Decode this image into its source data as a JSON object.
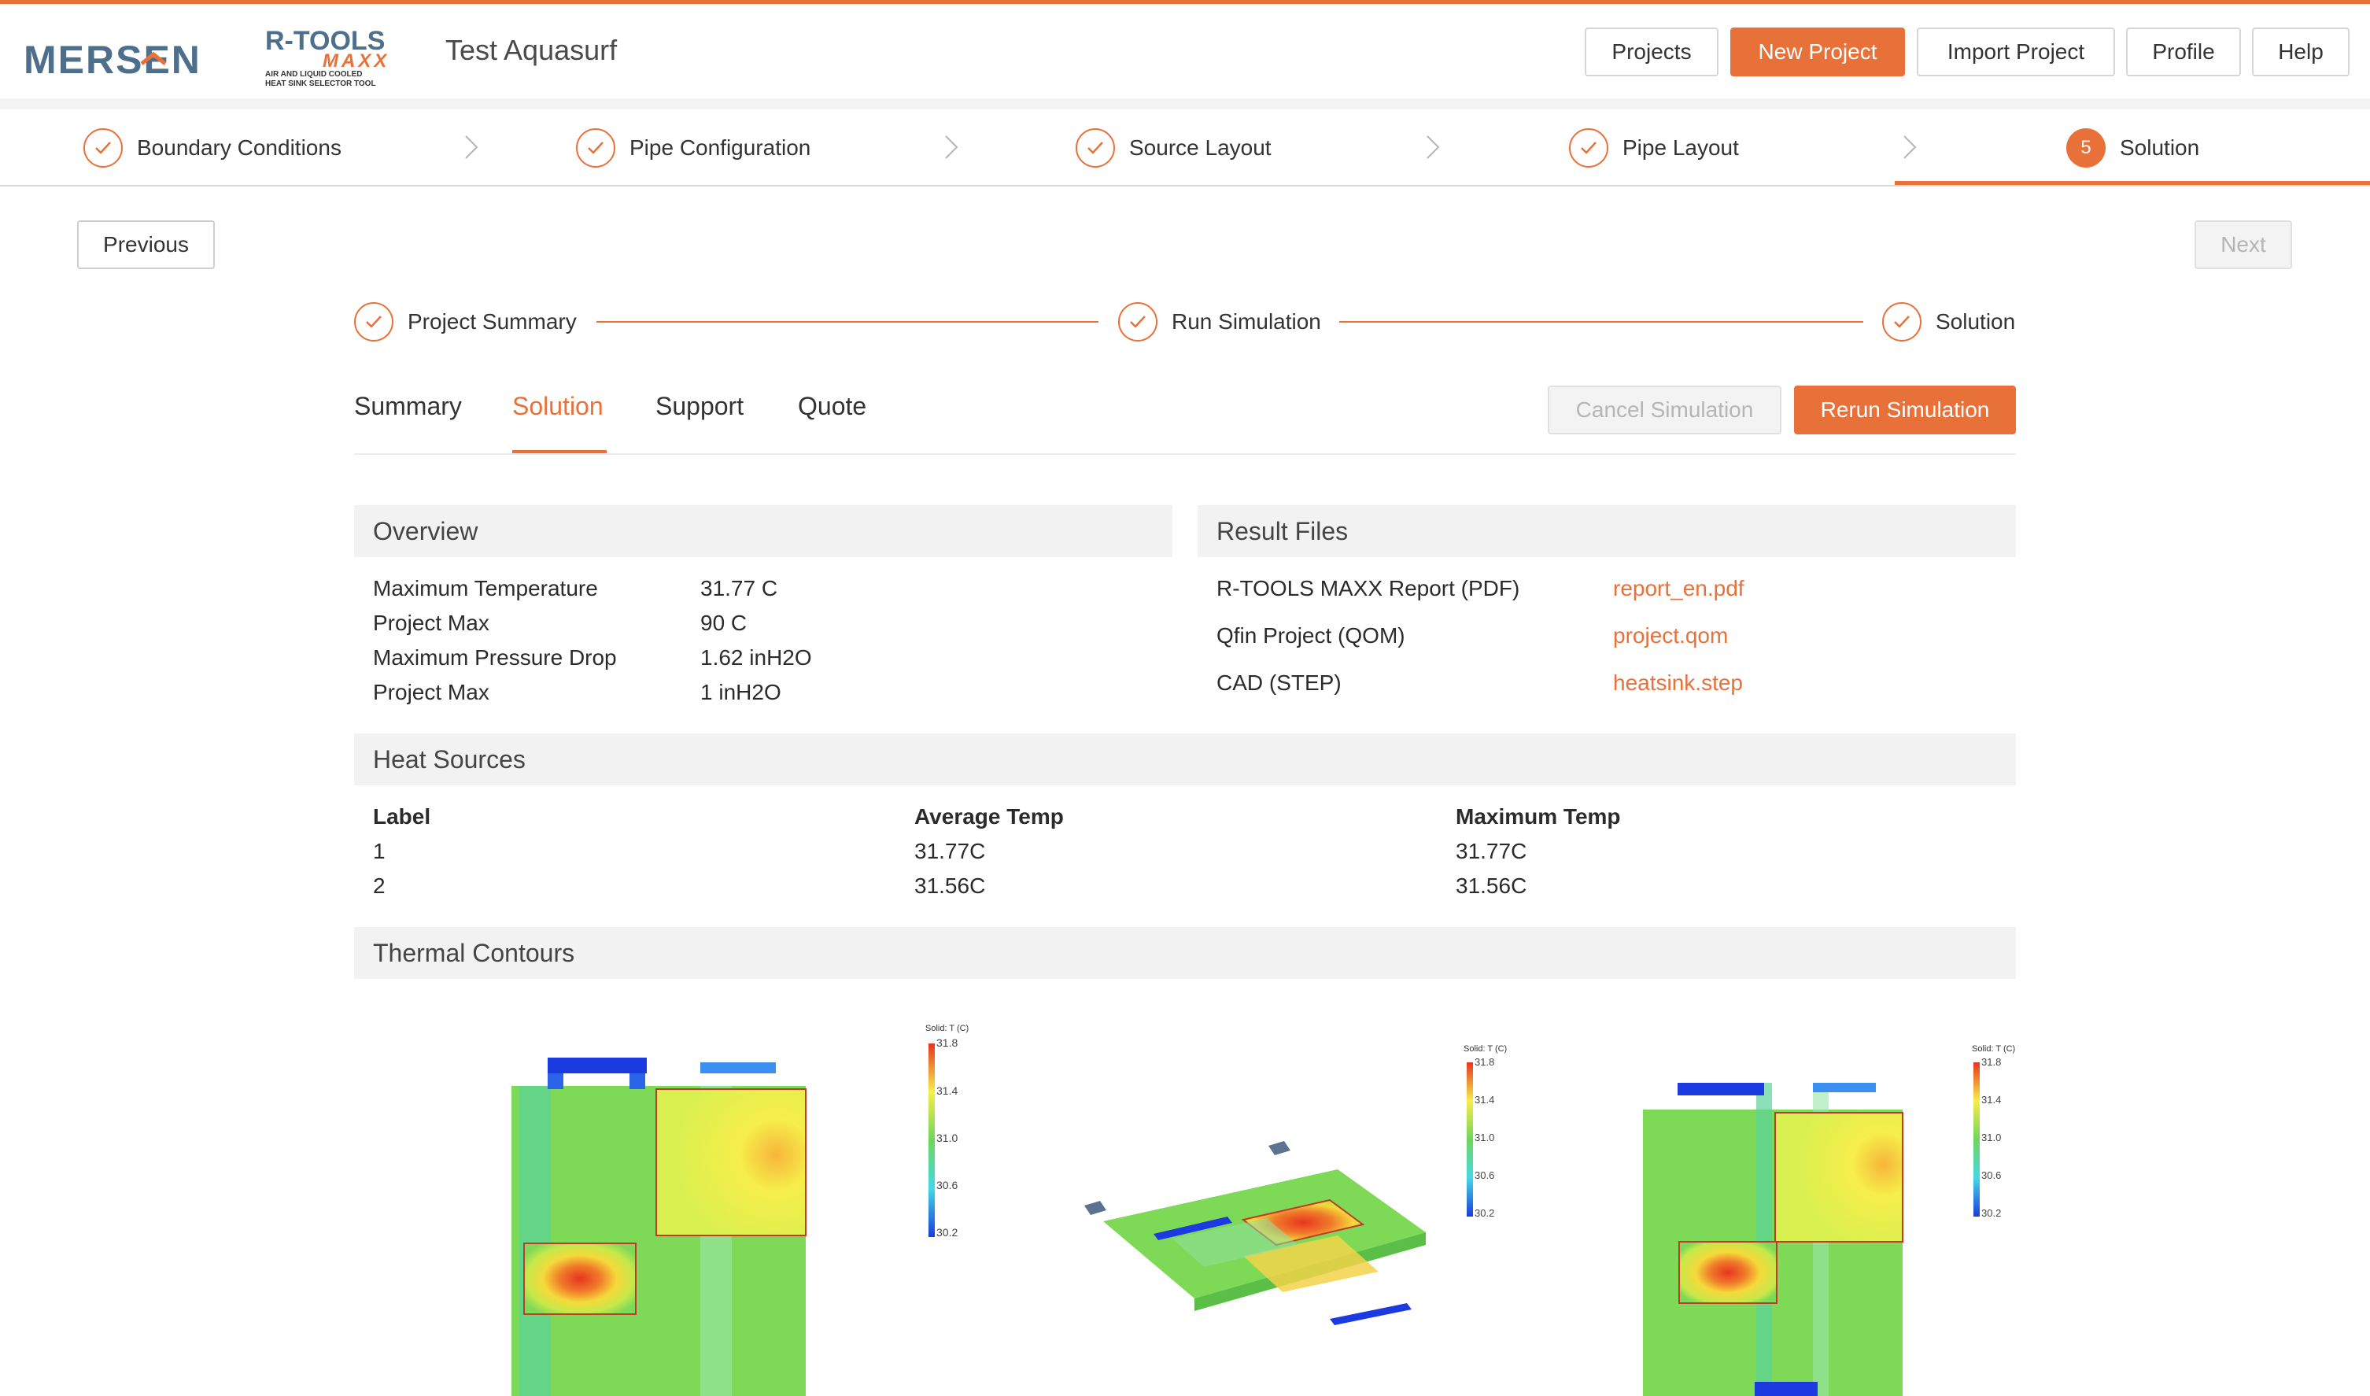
{
  "brand": {
    "company": "MERSEN",
    "product": "R-TOOLS",
    "product_sub": "MAXX",
    "tagline_1": "AIR AND LIQUID COOLED",
    "tagline_2": "HEAT SINK SELECTOR TOOL"
  },
  "header": {
    "project_name": "Test Aquasurf",
    "nav": [
      "Projects",
      "New Project",
      "Import Project",
      "Profile",
      "Help"
    ]
  },
  "wizard": {
    "steps": [
      "Boundary Conditions",
      "Pipe Configuration",
      "Source Layout",
      "Pipe Layout",
      "Solution"
    ],
    "active_number": "5"
  },
  "buttons": {
    "previous": "Previous",
    "next": "Next",
    "cancel_sim": "Cancel Simulation",
    "rerun_sim": "Rerun Simulation"
  },
  "progress": {
    "steps": [
      "Project Summary",
      "Run Simulation",
      "Solution"
    ]
  },
  "tabs": [
    "Summary",
    "Solution",
    "Support",
    "Quote"
  ],
  "overview": {
    "title": "Overview",
    "rows": [
      {
        "label": "Maximum Temperature",
        "value": "31.77 C"
      },
      {
        "label": "Project Max",
        "value": "90 C"
      },
      {
        "label": "Maximum Pressure Drop",
        "value": "1.62 inH2O"
      },
      {
        "label": "Project Max",
        "value": "1 inH2O"
      }
    ]
  },
  "result_files": {
    "title": "Result Files",
    "rows": [
      {
        "label": "R-TOOLS MAXX Report (PDF)",
        "file": "report_en.pdf"
      },
      {
        "label": "Qfin Project (QOM)",
        "file": "project.qom"
      },
      {
        "label": "CAD (STEP)",
        "file": "heatsink.step"
      }
    ]
  },
  "heat_sources": {
    "title": "Heat Sources",
    "headers": [
      "Label",
      "Average Temp",
      "Maximum Temp"
    ],
    "rows": [
      {
        "label": "1",
        "avg": "31.77C",
        "max": "31.77C"
      },
      {
        "label": "2",
        "avg": "31.56C",
        "max": "31.56C"
      }
    ]
  },
  "thermal": {
    "title": "Thermal Contours",
    "legend_title_1": "Solid: T (C)",
    "legend_title_2": "Solid: T (C)",
    "legend_title_3": "Solid: T (C)",
    "legend_ticks": [
      "31.8",
      "31.4",
      "31.0",
      "30.6",
      "30.2"
    ]
  },
  "colors": {
    "accent": "#e8713a"
  }
}
